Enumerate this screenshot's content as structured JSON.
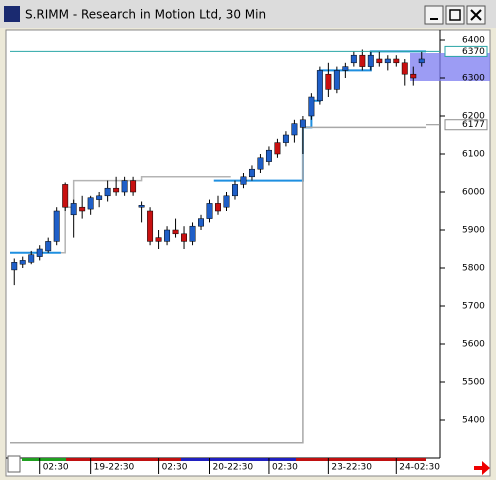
{
  "chart_data": {
    "type": "candlestick",
    "title": "S.RIMM - Research in Motion Ltd, 30 Min",
    "categories": [
      null,
      null,
      null,
      "02:30",
      null,
      null,
      null,
      null,
      null,
      "19-22:30",
      null,
      null,
      null,
      null,
      null,
      null,
      null,
      "02:30",
      null,
      null,
      null,
      null,
      null,
      "20-22:30",
      null,
      null,
      null,
      null,
      null,
      null,
      "02:30",
      null,
      null,
      null,
      null,
      null,
      null,
      "23-22:30",
      null,
      null,
      null,
      null,
      null,
      null,
      null,
      "24-02:30",
      null,
      null,
      null
    ],
    "open": [
      5795,
      5810,
      5815,
      5830,
      5845,
      5870,
      6020,
      5940,
      5960,
      5955,
      5980,
      5990,
      6010,
      6000,
      6030,
      5960,
      5950,
      5880,
      5870,
      5900,
      5890,
      5870,
      5910,
      5930,
      5970,
      5960,
      5990,
      6020,
      6040,
      6060,
      6080,
      6130,
      6130,
      6150,
      6170,
      6200,
      6240,
      6310,
      6270,
      6320,
      6340,
      6360,
      6330,
      6350,
      6340,
      6350,
      6340,
      6310,
      6340
    ],
    "high": [
      5825,
      5830,
      5845,
      5860,
      5880,
      5960,
      6025,
      5980,
      5990,
      5990,
      6000,
      6030,
      6040,
      6040,
      6040,
      5975,
      5960,
      5900,
      5910,
      5930,
      5910,
      5920,
      5940,
      5980,
      5990,
      6000,
      6030,
      6050,
      6070,
      6100,
      6120,
      6140,
      6160,
      6190,
      6200,
      6260,
      6330,
      6340,
      6330,
      6340,
      6370,
      6375,
      6370,
      6370,
      6360,
      6360,
      6350,
      6330,
      6370
    ],
    "low": [
      5755,
      5800,
      5810,
      5820,
      5840,
      5860,
      5950,
      5880,
      5930,
      5940,
      5960,
      5975,
      5990,
      5990,
      5990,
      5920,
      5860,
      5850,
      5860,
      5880,
      5850,
      5860,
      5900,
      5920,
      5940,
      5950,
      5980,
      6010,
      6030,
      6050,
      6070,
      6090,
      6120,
      6130,
      6100,
      6190,
      6230,
      6250,
      6260,
      6300,
      6330,
      6320,
      6320,
      6330,
      6320,
      6330,
      6280,
      6280,
      6330
    ],
    "close": [
      5815,
      5820,
      5835,
      5850,
      5870,
      5950,
      5960,
      5970,
      5950,
      5985,
      5990,
      6010,
      6000,
      6030,
      6000,
      5965,
      5870,
      5870,
      5900,
      5890,
      5870,
      5910,
      5930,
      5970,
      5950,
      5990,
      6020,
      6040,
      6060,
      6090,
      6110,
      6100,
      6150,
      6180,
      6190,
      6250,
      6320,
      6270,
      6320,
      6330,
      6360,
      6330,
      6360,
      6340,
      6350,
      6340,
      6310,
      6300,
      6350
    ],
    "up_color": "#1f5fc8",
    "down_color": "#c81010",
    "lines": [
      {
        "color": "#1e8fe0",
        "values": [
          5840,
          5840,
          5840,
          5840,
          5840,
          5840,
          null,
          null,
          null,
          null,
          null,
          null,
          null,
          null,
          null,
          null,
          null,
          null,
          null,
          null,
          null,
          null,
          null,
          null,
          6030,
          6030,
          6030,
          6030,
          6030,
          6030,
          6030,
          6030,
          6030,
          6030,
          6030,
          6170,
          6240,
          6320,
          6320,
          6320,
          6320,
          6320,
          6320,
          6370,
          6370,
          6370,
          6370,
          6370,
          6370
        ]
      },
      {
        "color": "#b4b4b4",
        "values": [
          null,
          null,
          null,
          null,
          null,
          null,
          5840,
          5960,
          6030,
          6030,
          6030,
          6030,
          6030,
          6030,
          6030,
          6030,
          6040,
          6040,
          6040,
          6040,
          6040,
          6040,
          6040,
          6040,
          6040,
          6040,
          null,
          null,
          null,
          null,
          null,
          null,
          null,
          null,
          null,
          null,
          null,
          null,
          null,
          null,
          null,
          null,
          null,
          null,
          null,
          null,
          null,
          null,
          null
        ]
      },
      {
        "color": "#a8a8a8",
        "values": [
          5340,
          5340,
          5340,
          5340,
          5340,
          5340,
          5340,
          5340,
          5340,
          5340,
          5340,
          5340,
          5340,
          5340,
          5340,
          5340,
          5340,
          5340,
          5340,
          5340,
          5340,
          5340,
          5340,
          5340,
          5340,
          5340,
          5340,
          5340,
          5340,
          5340,
          5340,
          5340,
          5340,
          5340,
          5340,
          6170,
          6170,
          6170,
          6170,
          6170,
          6170,
          6170,
          6170,
          6170,
          6170,
          6170,
          6170,
          6170,
          6170
        ]
      }
    ],
    "price_markers": [
      {
        "value": 6370,
        "color": "#2aa6a6"
      },
      {
        "value": 6177,
        "color": "#8c8c8c"
      }
    ],
    "ylim": [
      5320,
      6430
    ],
    "yticks": [
      5400,
      5500,
      5600,
      5700,
      5800,
      5900,
      6000,
      6100,
      6200,
      6300,
      6400
    ]
  }
}
